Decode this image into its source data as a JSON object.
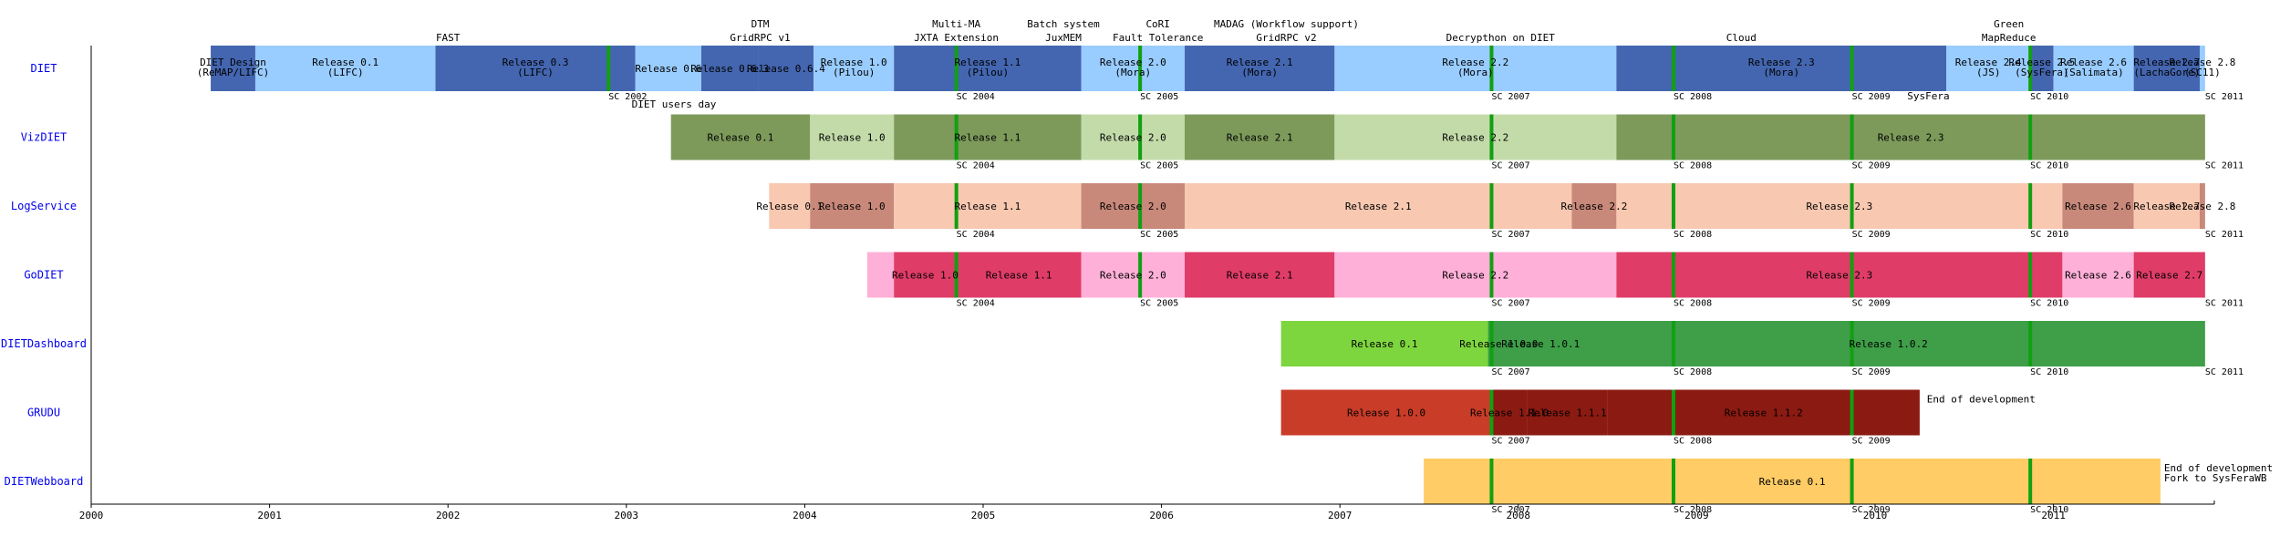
{
  "chart_data": {
    "type": "gantt",
    "x_axis": {
      "min": 2000,
      "max": 2011.85,
      "tick_labels": [
        "2000",
        "2001",
        "2002",
        "2003",
        "2004",
        "2005",
        "2006",
        "2007",
        "2008",
        "2009",
        "2010",
        "2011"
      ]
    },
    "palettes": {
      "DIET": {
        "light": "#99CCFF",
        "dark": "#4466B0"
      },
      "VizDIET": {
        "light": "#C3DBA9",
        "dark": "#7D9A5A"
      },
      "LogService": {
        "light": "#F8C8B0",
        "dark": "#C8887A"
      },
      "GoDIET": {
        "light": "#FFB0D8",
        "dark": "#E03C68"
      },
      "DIETDashboard": {
        "light": "#7ED63E",
        "dark": "#3F9E48"
      },
      "GRUDU": {
        "light": "#C83C28",
        "dark": "#8B1A12"
      },
      "DIETWebboard": {
        "light": "#FFCC66",
        "dark": "#FFCC66"
      },
      "sc_marker": "#11A011"
    },
    "sc_markers": [
      2002.9,
      2004.85,
      2005.88,
      2007.85,
      2008.87,
      2009.87,
      2010.87
    ],
    "rows": [
      {
        "name": "DIET",
        "segments": [
          {
            "start": 2000.67,
            "end": 2000.92,
            "shade": "dark",
            "label": [
              "DIET Design",
              "(ReMAP/LIFC)"
            ]
          },
          {
            "start": 2000.92,
            "end": 2001.93,
            "shade": "light",
            "label": [
              "Release 0.1",
              "(LIFC)"
            ]
          },
          {
            "start": 2001.93,
            "end": 2003.05,
            "shade": "dark",
            "label": [
              "Release 0.3",
              "(LIFC)"
            ]
          },
          {
            "start": 2003.05,
            "end": 2003.42,
            "shade": "light",
            "label": [
              "Release 0.6"
            ]
          },
          {
            "start": 2003.42,
            "end": 2003.74,
            "shade": "dark",
            "label": [
              "Release 0.6.3"
            ]
          },
          {
            "start": 2003.74,
            "end": 2004.05,
            "shade": "dark",
            "label": [
              "Release 0.6.4"
            ]
          },
          {
            "start": 2004.05,
            "end": 2004.5,
            "shade": "light",
            "label": [
              "Release 1.0",
              "(Pilou)"
            ]
          },
          {
            "start": 2004.5,
            "end": 2005.55,
            "shade": "dark",
            "label": [
              "Release 1.1",
              "(Pilou)"
            ]
          },
          {
            "start": 2005.55,
            "end": 2006.13,
            "shade": "light",
            "label": [
              "Release 2.0",
              "(Mora)"
            ]
          },
          {
            "start": 2006.13,
            "end": 2006.97,
            "shade": "dark",
            "label": [
              "Release 2.1",
              "(Mora)"
            ]
          },
          {
            "start": 2006.97,
            "end": 2008.55,
            "shade": "light",
            "label": [
              "Release  2.2",
              "(Mora)"
            ]
          },
          {
            "start": 2008.55,
            "end": 2010.4,
            "shade": "dark",
            "label": [
              "Release  2.3",
              "(Mora)"
            ]
          },
          {
            "start": 2010.4,
            "end": 2010.87,
            "shade": "light",
            "label": [
              "Release 2.4",
              "(JS)"
            ]
          },
          {
            "start": 2010.87,
            "end": 2011.0,
            "shade": "dark",
            "label": [
              "Release 2.5",
              "(SysFera)"
            ]
          },
          {
            "start": 2011.0,
            "end": 2011.45,
            "shade": "light",
            "label": [
              "Release 2.6",
              "(Salimata)"
            ]
          },
          {
            "start": 2011.45,
            "end": 2011.82,
            "shade": "dark",
            "label": [
              "Release 2.7",
              "(LachaGore)"
            ]
          },
          {
            "start": 2011.82,
            "end": 2011.85,
            "shade": "light",
            "label": [
              "Release 2.8",
              "(SC11)"
            ]
          }
        ]
      },
      {
        "name": "VizDIET",
        "segments": [
          {
            "start": 2003.25,
            "end": 2004.03,
            "shade": "dark",
            "label": [
              "Release 0.1"
            ]
          },
          {
            "start": 2004.03,
            "end": 2004.5,
            "shade": "light",
            "label": [
              "Release 1.0"
            ]
          },
          {
            "start": 2004.5,
            "end": 2005.55,
            "shade": "dark",
            "label": [
              "Release 1.1"
            ]
          },
          {
            "start": 2005.55,
            "end": 2006.13,
            "shade": "light",
            "label": [
              "Release 2.0"
            ]
          },
          {
            "start": 2006.13,
            "end": 2006.97,
            "shade": "dark",
            "label": [
              "Release 2.1"
            ]
          },
          {
            "start": 2006.97,
            "end": 2008.55,
            "shade": "light",
            "label": [
              "Release 2.2"
            ]
          },
          {
            "start": 2008.55,
            "end": 2011.85,
            "shade": "dark",
            "label": [
              "Release  2.3"
            ]
          }
        ]
      },
      {
        "name": "LogService",
        "segments": [
          {
            "start": 2003.8,
            "end": 2004.03,
            "shade": "light",
            "label": [
              "Release 0.1"
            ]
          },
          {
            "start": 2004.03,
            "end": 2004.5,
            "shade": "dark",
            "label": [
              "Release 1.0"
            ]
          },
          {
            "start": 2004.5,
            "end": 2005.55,
            "shade": "light",
            "label": [
              "Release 1.1"
            ]
          },
          {
            "start": 2005.55,
            "end": 2006.13,
            "shade": "dark",
            "label": [
              "Release 2.0"
            ]
          },
          {
            "start": 2006.13,
            "end": 2008.3,
            "shade": "light",
            "label": [
              "Release 2.1"
            ]
          },
          {
            "start": 2008.3,
            "end": 2008.55,
            "shade": "dark",
            "label": [
              "Release 2.2"
            ]
          },
          {
            "start": 2008.55,
            "end": 2011.05,
            "shade": "light",
            "label": [
              "Release  2.3"
            ]
          },
          {
            "start": 2011.05,
            "end": 2011.45,
            "shade": "dark",
            "label": [
              "Release 2.6"
            ]
          },
          {
            "start": 2011.45,
            "end": 2011.82,
            "shade": "light",
            "label": [
              "Release 2.7"
            ]
          },
          {
            "start": 2011.82,
            "end": 2011.85,
            "shade": "dark",
            "label": [
              "Release 2.8"
            ]
          }
        ]
      },
      {
        "name": "GoDIET",
        "segments": [
          {
            "start": 2004.35,
            "end": 2004.5,
            "shade": "light",
            "label": []
          },
          {
            "start": 2004.5,
            "end": 2004.85,
            "shade": "dark",
            "label": [
              "Release 1.0"
            ]
          },
          {
            "start": 2004.85,
            "end": 2005.55,
            "shade": "dark",
            "label": [
              "Release 1.1"
            ]
          },
          {
            "start": 2005.55,
            "end": 2006.13,
            "shade": "light",
            "label": [
              "Release 2.0"
            ]
          },
          {
            "start": 2006.13,
            "end": 2006.97,
            "shade": "dark",
            "label": [
              "Release 2.1"
            ]
          },
          {
            "start": 2006.97,
            "end": 2008.55,
            "shade": "light",
            "label": [
              "Release 2.2"
            ]
          },
          {
            "start": 2008.55,
            "end": 2011.05,
            "shade": "dark",
            "label": [
              "Release  2.3"
            ]
          },
          {
            "start": 2011.05,
            "end": 2011.45,
            "shade": "light",
            "label": [
              "Release 2.6"
            ]
          },
          {
            "start": 2011.45,
            "end": 2011.85,
            "shade": "dark",
            "label": [
              "Release 2.7"
            ]
          }
        ]
      },
      {
        "name": "DIETDashboard",
        "segments": [
          {
            "start": 2006.67,
            "end": 2007.83,
            "shade": "light",
            "label": [
              "Release 0.1"
            ]
          },
          {
            "start": 2007.83,
            "end": 2007.95,
            "shade": "dark",
            "label": [
              "Release 1.0.0"
            ]
          },
          {
            "start": 2007.95,
            "end": 2008.3,
            "shade": "dark",
            "label": [
              "Release 1.0.1"
            ]
          },
          {
            "start": 2008.3,
            "end": 2011.85,
            "shade": "dark",
            "label": [
              "Release 1.0.2"
            ]
          }
        ]
      },
      {
        "name": "GRUDU",
        "segments": [
          {
            "start": 2006.67,
            "end": 2007.85,
            "shade": "light",
            "label": [
              "Release 1.0.0"
            ]
          },
          {
            "start": 2007.85,
            "end": 2008.05,
            "shade": "dark",
            "label": [
              "Release 1.1.0"
            ]
          },
          {
            "start": 2008.05,
            "end": 2008.5,
            "shade": "dark",
            "label": [
              "Release 1.1.1"
            ]
          },
          {
            "start": 2008.5,
            "end": 2010.25,
            "shade": "dark",
            "label": [
              "Release 1.1.2"
            ]
          }
        ]
      },
      {
        "name": "DIETWebboard",
        "segments": [
          {
            "start": 2007.47,
            "end": 2011.6,
            "shade": "light",
            "label": [
              "Release 0.1"
            ]
          }
        ]
      }
    ],
    "top_events": [
      {
        "x": 2002.0,
        "lines": [
          "FAST"
        ]
      },
      {
        "x": 2003.75,
        "lines": [
          "DTM",
          "GridRPC v1"
        ]
      },
      {
        "x": 2004.85,
        "lines": [
          "Multi-MA",
          "JXTA Extension"
        ]
      },
      {
        "x": 2005.45,
        "lines": [
          "Batch system",
          "JuxMEM"
        ]
      },
      {
        "x": 2005.98,
        "lines": [
          "CoRI",
          "Fault Tolerance"
        ]
      },
      {
        "x": 2006.7,
        "lines": [
          "MADAG (Workflow support)",
          "GridRPC v2"
        ]
      },
      {
        "x": 2007.9,
        "lines": [
          "Decrypthon on DIET"
        ]
      },
      {
        "x": 2009.25,
        "lines": [
          "Cloud"
        ]
      },
      {
        "x": 2010.75,
        "lines": [
          "Green",
          "MapReduce"
        ]
      }
    ],
    "annotations": [
      {
        "row": 0,
        "x": 2003.03,
        "text": "DIET users day"
      },
      {
        "row": 0,
        "x": 2010.18,
        "text": "SysFera"
      },
      {
        "row": 5,
        "x": 2010.29,
        "text": "End of development"
      },
      {
        "row": 6,
        "x": 2011.62,
        "text": "End of development"
      },
      {
        "row": 6,
        "x": 2011.62,
        "text": "Fork to SysFeraWB"
      }
    ],
    "sc_labels": [
      {
        "row": 0,
        "labels": [
          "SC 2002",
          "SC 2004",
          "SC 2005",
          "SC 2007",
          "SC 2008",
          "SC 2009",
          "SC 2010",
          "SC 2011"
        ]
      },
      {
        "row": 1,
        "labels": [
          "SC 2004",
          "SC 2005",
          "SC 2007",
          "SC 2008",
          "SC 2009",
          "SC 2010",
          "SC 2011"
        ]
      },
      {
        "row": 2,
        "labels": [
          "SC 2004",
          "SC 2005",
          "SC 2007",
          "SC 2008",
          "SC 2009",
          "SC 2010",
          "SC 2011"
        ]
      },
      {
        "row": 3,
        "labels": [
          "SC 2004",
          "SC 2005",
          "SC 2007",
          "SC 2008",
          "SC 2009",
          "SC 2010",
          "SC 2011"
        ]
      },
      {
        "row": 4,
        "labels": [
          "SC 2007",
          "SC 2008",
          "SC 2009",
          "SC 2010",
          "SC 2011"
        ]
      },
      {
        "row": 5,
        "labels": [
          "SC 2007",
          "SC 2008",
          "SC 2009"
        ]
      },
      {
        "row": 6,
        "labels": [
          "SC 2007",
          "SC 2008",
          "SC 2009",
          "SC 2010"
        ]
      }
    ],
    "sc_label_years": {
      "SC 2002": 2002.9,
      "SC 2004": 2004.85,
      "SC 2005": 2005.88,
      "SC 2007": 2007.85,
      "SC 2008": 2008.87,
      "SC 2009": 2009.87,
      "SC 2010": 2010.87,
      "SC 2011": 2011.85
    }
  }
}
